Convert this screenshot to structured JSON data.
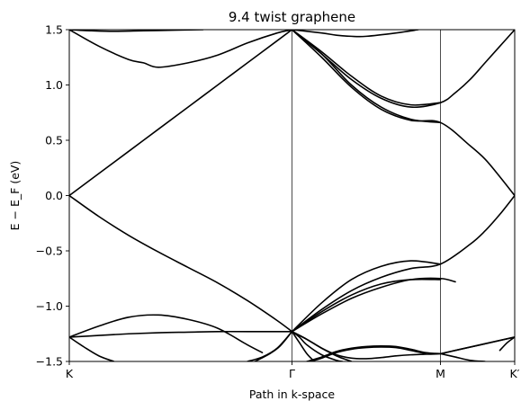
{
  "chart_data": {
    "type": "line",
    "title": "9.4 twist graphene",
    "xlabel": "Path in k-space",
    "ylabel": "E − E_F (eV)",
    "ylim": [
      -1.5,
      1.5
    ],
    "yticks": [
      -1.5,
      -1.0,
      -0.5,
      0.0,
      0.5,
      1.0,
      1.5
    ],
    "ytick_labels": [
      "−1.5",
      "−1.0",
      "−0.5",
      "0.0",
      "0.5",
      "1.0",
      "1.5"
    ],
    "xlim": [
      0,
      3.0
    ],
    "xticks": [
      0,
      1.5,
      2.5,
      3.0
    ],
    "xtick_labels": [
      "K",
      "Γ",
      "M",
      "K′"
    ],
    "high_symmetry_lines": [
      1.5,
      2.5
    ],
    "grid": false,
    "line_color": "#000000",
    "series": [
      {
        "x": [
          0,
          0.2,
          0.4,
          0.6,
          0.8,
          1.0,
          1.2,
          1.4,
          1.5
        ],
        "y": [
          0.0,
          0.2,
          0.4,
          0.6,
          0.8,
          1.0,
          1.2,
          1.4,
          1.5
        ]
      },
      {
        "x": [
          0,
          0.2,
          0.4,
          0.6,
          0.8,
          1.0,
          1.2,
          1.4,
          1.5
        ],
        "y": [
          0.0,
          -0.19,
          -0.36,
          -0.51,
          -0.65,
          -0.79,
          -0.95,
          -1.13,
          -1.23
        ]
      },
      {
        "x": [
          0,
          0.2,
          0.4,
          0.5,
          0.6,
          0.8,
          1.0,
          1.2,
          1.4,
          1.5
        ],
        "y": [
          1.5,
          1.35,
          1.23,
          1.2,
          1.16,
          1.2,
          1.27,
          1.38,
          1.47,
          1.5
        ]
      },
      {
        "x": [
          0,
          0.15,
          0.3,
          0.5,
          0.7,
          0.9
        ],
        "y": [
          1.5,
          1.49,
          1.485,
          1.49,
          1.495,
          1.5
        ]
      },
      {
        "x": [
          1.5,
          1.7,
          1.9,
          2.1,
          2.3,
          2.5,
          2.6,
          2.7,
          2.8,
          2.9,
          3.0
        ],
        "y": [
          1.5,
          1.28,
          1.05,
          0.88,
          0.8,
          0.84,
          0.93,
          1.05,
          1.2,
          1.35,
          1.5
        ]
      },
      {
        "x": [
          1.5,
          1.7,
          1.9,
          2.1,
          2.3,
          2.5
        ],
        "y": [
          1.5,
          1.3,
          1.08,
          0.9,
          0.82,
          0.84
        ]
      },
      {
        "x": [
          1.5,
          1.7,
          1.9,
          2.1,
          2.3,
          2.5,
          2.7,
          2.8,
          2.9,
          3.0
        ],
        "y": [
          1.5,
          1.25,
          0.98,
          0.78,
          0.68,
          0.66,
          0.45,
          0.33,
          0.17,
          0.0
        ]
      },
      {
        "x": [
          1.5,
          1.7,
          1.9,
          2.1,
          2.3,
          2.5
        ],
        "y": [
          1.5,
          1.28,
          1.0,
          0.8,
          0.69,
          0.66
        ]
      },
      {
        "x": [
          1.5,
          1.7,
          1.8,
          1.9,
          2.0,
          2.2,
          2.35
        ],
        "y": [
          1.5,
          1.47,
          1.45,
          1.44,
          1.44,
          1.47,
          1.5
        ]
      },
      {
        "x": [
          1.5,
          1.7,
          1.9,
          2.1,
          2.3,
          2.5
        ],
        "y": [
          -1.23,
          -0.97,
          -0.76,
          -0.64,
          -0.59,
          -0.62
        ]
      },
      {
        "x": [
          1.5,
          1.7,
          1.9,
          2.1,
          2.3,
          2.5,
          2.7,
          2.8,
          2.9,
          3.0
        ],
        "y": [
          -1.23,
          -1.03,
          -0.86,
          -0.74,
          -0.66,
          -0.62,
          -0.44,
          -0.32,
          -0.17,
          0.0
        ]
      },
      {
        "x": [
          1.5,
          1.7,
          1.9,
          2.1,
          2.3,
          2.5,
          2.6
        ],
        "y": [
          -1.23,
          -1.07,
          -0.93,
          -0.83,
          -0.76,
          -0.75,
          -0.78
        ]
      },
      {
        "x": [
          1.5,
          1.7,
          1.9,
          2.1,
          2.3,
          2.5
        ],
        "y": [
          -1.23,
          -1.05,
          -0.9,
          -0.8,
          -0.76,
          -0.76
        ]
      },
      {
        "x": [
          0,
          0.2,
          0.4,
          0.6,
          0.8,
          1.0,
          1.2,
          1.5
        ],
        "y": [
          -1.28,
          -1.265,
          -1.25,
          -1.24,
          -1.235,
          -1.23,
          -1.23,
          -1.23
        ]
      },
      {
        "x": [
          0,
          0.2,
          0.4,
          0.6,
          0.8,
          1.0,
          1.2,
          1.3
        ],
        "y": [
          -1.28,
          -1.18,
          -1.1,
          -1.08,
          -1.12,
          -1.2,
          -1.35,
          -1.42
        ]
      },
      {
        "x": [
          1.5,
          1.6,
          1.7,
          1.8,
          1.9,
          2.0,
          2.1,
          2.2,
          2.3,
          2.4,
          2.5,
          2.6,
          2.8,
          3.0
        ],
        "y": [
          -1.23,
          -1.3,
          -1.38,
          -1.44,
          -1.47,
          -1.475,
          -1.465,
          -1.45,
          -1.44,
          -1.435,
          -1.43,
          -1.4,
          -1.34,
          -1.28
        ]
      },
      {
        "x": [
          1.6,
          1.7,
          1.8,
          1.9,
          2.0,
          2.1,
          2.2,
          2.3,
          2.4,
          2.5
        ],
        "y": [
          -1.5,
          -1.46,
          -1.41,
          -1.38,
          -1.365,
          -1.36,
          -1.365,
          -1.39,
          -1.42,
          -1.43
        ]
      },
      {
        "x": [
          1.62,
          1.7,
          1.8,
          1.9,
          2.0,
          2.1,
          2.2,
          2.3,
          2.4
        ],
        "y": [
          -1.5,
          -1.47,
          -1.42,
          -1.39,
          -1.375,
          -1.37,
          -1.375,
          -1.4,
          -1.43
        ]
      },
      {
        "x": [
          2.5,
          2.7,
          2.9,
          3.0
        ],
        "y": [
          -1.43,
          -1.37,
          -1.31,
          -1.28
        ]
      },
      {
        "x": [
          2.5,
          2.6,
          2.7,
          2.8
        ],
        "y": [
          -1.43,
          -1.46,
          -1.49,
          -1.5
        ]
      },
      {
        "x": [
          2.9,
          2.95,
          3.0
        ],
        "y": [
          -1.4,
          -1.33,
          -1.28
        ]
      },
      {
        "x": [
          0,
          0.1,
          0.2,
          0.3
        ],
        "y": [
          -1.28,
          -1.37,
          -1.45,
          -1.5
        ]
      },
      {
        "x": [
          1.5,
          1.55,
          1.6,
          1.65
        ],
        "y": [
          -1.23,
          -1.33,
          -1.43,
          -1.5
        ]
      },
      {
        "x": [
          1.5,
          1.55,
          1.6,
          1.7,
          1.8,
          1.84
        ],
        "y": [
          -1.23,
          -1.28,
          -1.35,
          -1.44,
          -1.49,
          -1.5
        ]
      },
      {
        "x": [
          1.5,
          1.6,
          1.7,
          1.8,
          1.9
        ],
        "y": [
          -1.23,
          -1.3,
          -1.38,
          -1.45,
          -1.5
        ]
      },
      {
        "x": [
          1.2,
          1.3,
          1.4,
          1.5
        ],
        "y": [
          -1.5,
          -1.46,
          -1.38,
          -1.23
        ]
      },
      {
        "x": [
          1.25,
          1.35,
          1.42,
          1.5
        ],
        "y": [
          -1.5,
          -1.43,
          -1.36,
          -1.23
        ]
      }
    ]
  }
}
